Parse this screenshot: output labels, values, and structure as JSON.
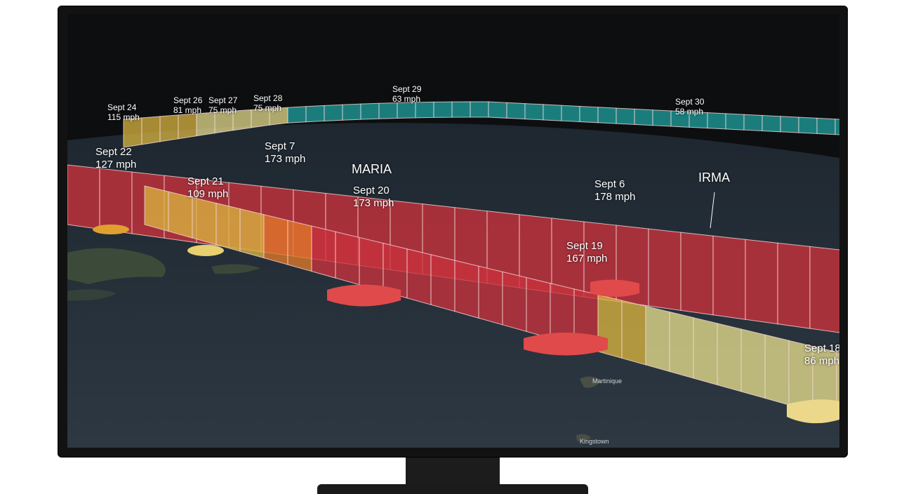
{
  "storms": [
    {
      "name": "MARIA",
      "id": "maria"
    },
    {
      "name": "IRMA",
      "id": "irma"
    }
  ],
  "points": [
    {
      "id": "sept24",
      "date": "Sept 24",
      "speed": "115 mph"
    },
    {
      "id": "sept26",
      "date": "Sept 26",
      "speed": "81 mph"
    },
    {
      "id": "sept27",
      "date": "Sept 27",
      "speed": "75 mph"
    },
    {
      "id": "sept28",
      "date": "Sept 28",
      "speed": "75 mph"
    },
    {
      "id": "sept29",
      "date": "Sept 29",
      "speed": "63 mph"
    },
    {
      "id": "sept30",
      "date": "Sept 30",
      "speed": "58 mph"
    },
    {
      "id": "sept22",
      "date": "Sept 22",
      "speed": "127 mph"
    },
    {
      "id": "sept7",
      "date": "Sept 7",
      "speed": "173 mph"
    },
    {
      "id": "sept21",
      "date": "Sept 21",
      "speed": "109 mph"
    },
    {
      "id": "sept20",
      "date": "Sept 20",
      "speed": "173 mph"
    },
    {
      "id": "sept6",
      "date": "Sept 6",
      "speed": "178 mph"
    },
    {
      "id": "sept19",
      "date": "Sept 19",
      "speed": "167 mph"
    },
    {
      "id": "sept18",
      "date": "Sept 18",
      "speed": "86 mph"
    }
  ],
  "places": [
    "Martinique",
    "Kingstown"
  ],
  "colors": {
    "extreme": "#c8323c",
    "high": "#e0782a",
    "medium": "#d9b440",
    "low": "#e6dc8c",
    "weak": "#1fa3a0",
    "ocean": "#27313b",
    "land": "#3a4a3c",
    "sky": "#0d0e10"
  }
}
